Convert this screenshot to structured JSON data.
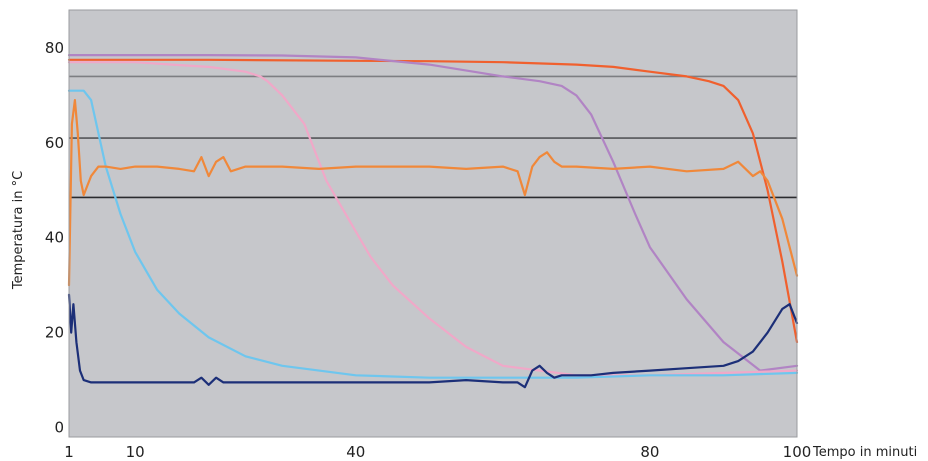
{
  "chart_data": {
    "type": "line",
    "title": "",
    "xlabel": "Tempo in minuti",
    "ylabel": "Temperatura in °C",
    "xlim": [
      1,
      100
    ],
    "ylim": [
      -2,
      88
    ],
    "x_ticks": [
      1,
      10,
      40,
      80,
      100
    ],
    "y_ticks": [
      0,
      20,
      40,
      60,
      80
    ],
    "background": "#c6c7cb",
    "grid": false,
    "reference_lines": [
      {
        "y": 74,
        "color": "#7d7e82"
      },
      {
        "y": 61,
        "color": "#55565a"
      },
      {
        "y": 48.5,
        "color": "#2a2b2f"
      }
    ],
    "series": [
      {
        "color": "#f0602e",
        "x": [
          1,
          10,
          20,
          40,
          50,
          60,
          70,
          75,
          80,
          85,
          88,
          90,
          92,
          94,
          96,
          98,
          100
        ],
        "y": [
          77.5,
          77.5,
          77.5,
          77.3,
          77.2,
          77,
          76.5,
          76,
          75,
          74,
          73,
          72,
          69,
          62,
          50,
          35,
          18
        ]
      },
      {
        "color": "#b184c4",
        "x": [
          1,
          10,
          20,
          30,
          40,
          50,
          60,
          65,
          68,
          70,
          72,
          75,
          78,
          80,
          85,
          90,
          95,
          100
        ],
        "y": [
          78.5,
          78.5,
          78.5,
          78.4,
          78,
          76.5,
          74,
          73,
          72,
          70,
          66,
          56,
          45,
          38,
          27,
          18,
          12,
          13
        ]
      },
      {
        "color": "#f0a8c8",
        "x": [
          1,
          10,
          15,
          20,
          25,
          27,
          28,
          30,
          33,
          36,
          39,
          42,
          45,
          50,
          55,
          60,
          70,
          80,
          90,
          100
        ],
        "y": [
          77,
          77,
          76.5,
          76,
          75,
          74,
          73,
          70,
          64,
          52,
          44,
          36,
          30,
          23,
          17,
          13,
          11,
          11,
          11.5,
          12
        ]
      },
      {
        "color": "#6ec6ee",
        "x": [
          1,
          3,
          4,
          6,
          8,
          10,
          13,
          16,
          20,
          25,
          30,
          40,
          50,
          60,
          70,
          80,
          90,
          100
        ],
        "y": [
          71,
          71,
          69,
          55,
          45,
          37,
          29,
          24,
          19,
          15,
          13,
          11,
          10.5,
          10.5,
          10.5,
          11,
          11,
          11.5
        ]
      },
      {
        "color": "#f0883a",
        "x": [
          1,
          1.4,
          1.8,
          2.2,
          2.6,
          3,
          3.5,
          4,
          5,
          6,
          8,
          10,
          13,
          16,
          18,
          19,
          20,
          21,
          22,
          23,
          25,
          30,
          35,
          40,
          45,
          50,
          55,
          60,
          62,
          63,
          64,
          65,
          66,
          67,
          68,
          70,
          75,
          80,
          85,
          90,
          92,
          94,
          95,
          96,
          98,
          100
        ],
        "y": [
          30,
          64,
          69,
          62,
          52,
          49,
          51,
          53,
          55,
          55,
          54.5,
          55,
          55,
          54.5,
          54,
          57,
          53,
          56,
          57,
          54,
          55,
          55,
          54.5,
          55,
          55,
          55,
          54.5,
          55,
          54,
          49,
          55,
          57,
          58,
          56,
          55,
          55,
          54.5,
          55,
          54,
          54.5,
          56,
          53,
          54,
          52,
          44,
          32
        ]
      },
      {
        "color": "#1c2f78",
        "x": [
          1,
          1.3,
          1.6,
          2,
          2.5,
          3,
          4,
          5,
          7,
          10,
          15,
          18,
          19,
          20,
          21,
          22,
          25,
          30,
          40,
          50,
          55,
          60,
          62,
          63,
          64,
          65,
          66,
          67,
          68,
          70,
          72,
          75,
          80,
          85,
          90,
          92,
          94,
          96,
          98,
          99,
          100
        ],
        "y": [
          28,
          20,
          26,
          18,
          12,
          10,
          9.5,
          9.5,
          9.5,
          9.5,
          9.5,
          9.5,
          10.5,
          9,
          10.5,
          9.5,
          9.5,
          9.5,
          9.5,
          9.5,
          10,
          9.5,
          9.5,
          8.5,
          12,
          13,
          11.5,
          10.5,
          11,
          11,
          11,
          11.5,
          12,
          12.5,
          13,
          14,
          16,
          20,
          25,
          26,
          22
        ]
      }
    ]
  }
}
